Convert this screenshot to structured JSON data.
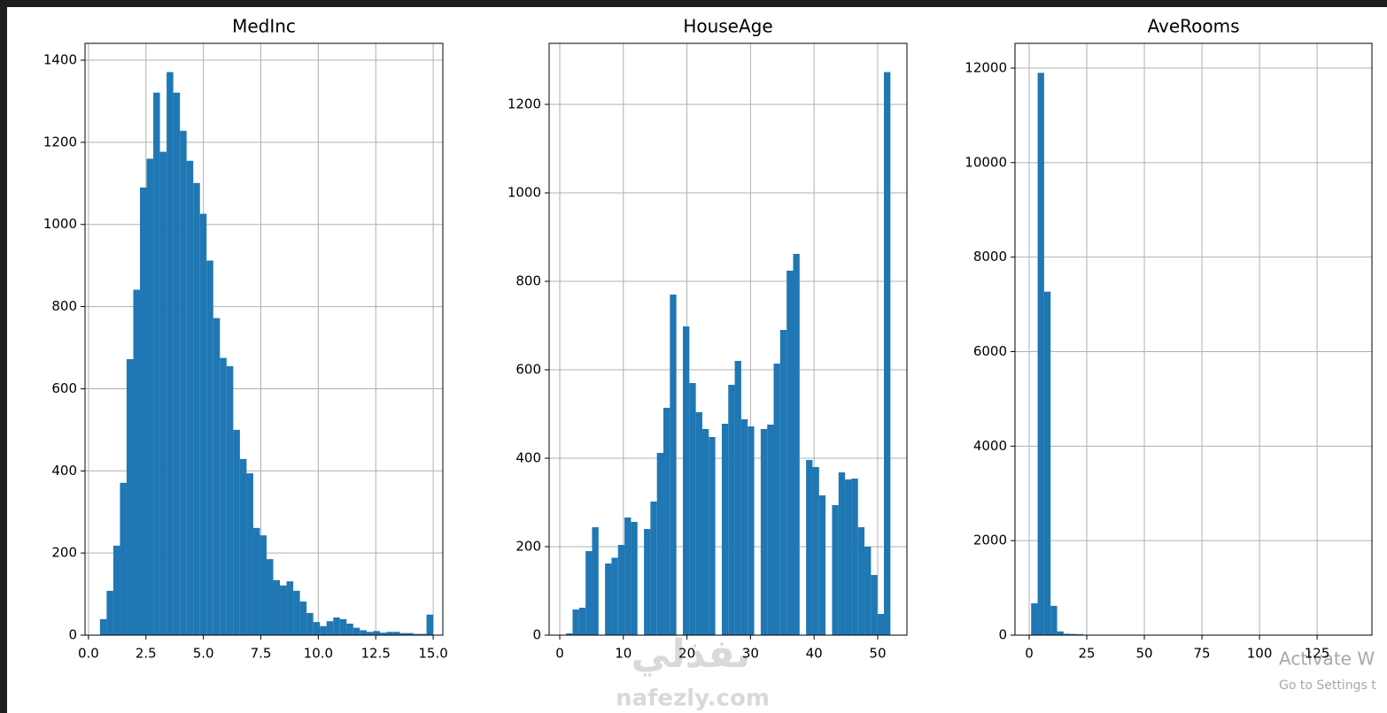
{
  "chart_data": [
    {
      "type": "histogram",
      "title": "MedInc",
      "color": "#1f77b4",
      "grid": true,
      "bins": [
        0.5,
        0.79,
        1.08,
        1.37,
        1.66,
        1.95,
        2.24,
        2.53,
        2.82,
        3.11,
        3.4,
        3.69,
        3.98,
        4.27,
        4.56,
        4.85,
        5.14,
        5.43,
        5.72,
        6.01,
        6.3,
        6.59,
        6.88,
        7.17,
        7.46,
        7.75,
        8.04,
        8.33,
        8.62,
        8.91,
        9.2,
        9.49,
        9.78,
        10.07,
        10.36,
        10.65,
        10.94,
        11.23,
        11.52,
        11.81,
        12.1,
        12.39,
        12.68,
        12.97,
        13.26,
        13.55,
        13.84,
        14.13,
        14.42,
        14.71,
        15.0
      ],
      "values": [
        39,
        108,
        218,
        371,
        672,
        841,
        1090,
        1160,
        1321,
        1177,
        1371,
        1321,
        1228,
        1155,
        1101,
        1026,
        912,
        772,
        675,
        655,
        500,
        429,
        394,
        261,
        243,
        185,
        134,
        121,
        131,
        108,
        82,
        54,
        32,
        22,
        34,
        43,
        39,
        28,
        18,
        12,
        8,
        10,
        6,
        8,
        8,
        5,
        5,
        3,
        3,
        50
      ],
      "xlim": [
        -0.15,
        15.42
      ],
      "ylim": [
        0,
        1441
      ],
      "xticks": [
        {
          "value": 0,
          "label": "0.0"
        },
        2.5,
        {
          "value": 5,
          "label": "5.0"
        },
        7.5,
        {
          "value": 10,
          "label": "10.0"
        },
        12.5,
        {
          "value": 15,
          "label": "15.0"
        }
      ],
      "yticks": [
        0,
        200,
        400,
        600,
        800,
        1000,
        1200,
        1400
      ]
    },
    {
      "type": "histogram",
      "title": "HouseAge",
      "color": "#1f77b4",
      "grid": true,
      "bins": [
        1,
        2.02,
        3.04,
        4.06,
        5.08,
        6.1,
        7.12,
        8.14,
        9.16,
        10.18,
        11.2,
        12.22,
        13.24,
        14.26,
        15.28,
        16.3,
        17.32,
        18.34,
        19.36,
        20.38,
        21.4,
        22.42,
        23.44,
        24.46,
        25.48,
        26.5,
        27.52,
        28.54,
        29.56,
        30.58,
        31.6,
        32.62,
        33.64,
        34.66,
        35.68,
        36.7,
        37.72,
        38.74,
        39.76,
        40.78,
        41.8,
        42.82,
        43.84,
        44.86,
        45.88,
        46.9,
        47.92,
        48.94,
        49.96,
        50.98,
        52
      ],
      "values": [
        4,
        58,
        62,
        190,
        244,
        0,
        162,
        175,
        204,
        266,
        256,
        0,
        240,
        302,
        412,
        514,
        770,
        0,
        698,
        570,
        504,
        466,
        448,
        0,
        478,
        566,
        620,
        488,
        472,
        0,
        466,
        476,
        614,
        690,
        824,
        862,
        0,
        396,
        380,
        316,
        0,
        294,
        368,
        352,
        354,
        244,
        200,
        136,
        48,
        1273
      ],
      "xlim": [
        -1.67,
        54.6
      ],
      "ylim": [
        0,
        1338
      ],
      "xticks": [
        0,
        10,
        20,
        30,
        40,
        50
      ],
      "yticks": [
        0,
        200,
        400,
        600,
        800,
        1000,
        1200
      ]
    },
    {
      "type": "histogram",
      "title": "AveRooms",
      "color": "#1f77b4",
      "grid": true,
      "bins": [
        0.85,
        3.67,
        6.49,
        9.31,
        12.13,
        14.95,
        17.77,
        20.59,
        23.41,
        26.23,
        29.05,
        31.87,
        34.69,
        37.51,
        40.33,
        43.15,
        45.97,
        48.79,
        51.61,
        54.43,
        57.25,
        60.07,
        62.89,
        65.71,
        68.53,
        71.35,
        74.17,
        76.99,
        79.81,
        82.63,
        85.45,
        88.27,
        91.09,
        93.91,
        96.73,
        99.55,
        102.37,
        105.19,
        108.01,
        110.83,
        113.65,
        116.47,
        119.29,
        122.11,
        124.93,
        127.75,
        130.57,
        133.39,
        136.21,
        139.03,
        141.85
      ],
      "values": [
        674,
        11900,
        7270,
        620,
        80,
        30,
        25,
        20,
        10,
        8,
        5,
        3,
        2,
        1,
        1,
        0,
        0,
        0,
        0,
        0,
        0,
        0,
        0,
        0,
        0,
        0,
        0,
        0,
        0,
        0,
        0,
        0,
        0,
        0,
        0,
        0,
        0,
        0,
        0,
        0,
        0,
        0,
        0,
        0,
        0,
        0,
        0,
        0,
        0,
        1
      ],
      "xlim": [
        -6.15,
        148.8
      ],
      "ylim": [
        0,
        12524
      ],
      "xticks": [
        0,
        25,
        50,
        75,
        100,
        125
      ],
      "yticks": [
        0,
        2000,
        4000,
        6000,
        8000,
        10000,
        12000
      ]
    }
  ],
  "watermark": {
    "arabic": "نفذلي",
    "latin": "nafezly.com"
  },
  "os_notice": {
    "line1": "Activate W",
    "line2": "Go to Settings t"
  }
}
